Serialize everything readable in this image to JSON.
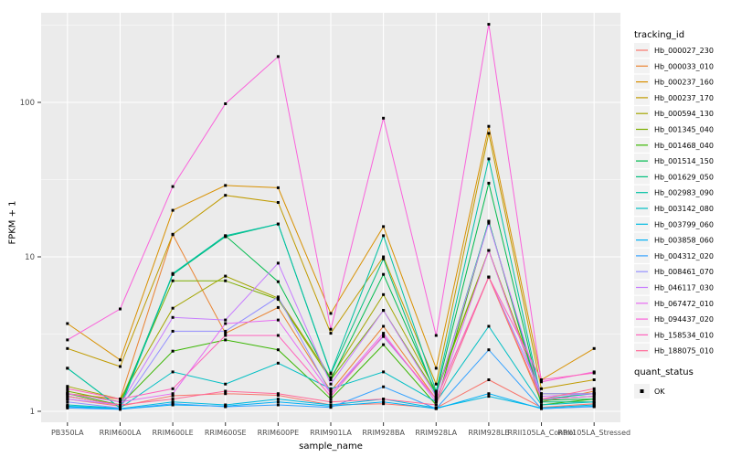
{
  "figure": {
    "background": "#ffffff",
    "panel_background": "#ebebeb",
    "grid_color": "#ffffff",
    "tick_label_color": "#4d4d4d",
    "axis_title_color": "#000000",
    "point_color": "#000000",
    "legend_key_background": "#f2f2f2"
  },
  "axes": {
    "x_title": "sample_name",
    "y_title": "FPKM + 1",
    "y_tick_labels": [
      "1",
      "10",
      "100"
    ]
  },
  "legend": {
    "title": "tracking_id",
    "quant_title": "quant_status",
    "quant_items": [
      {
        "label": "OK"
      }
    ]
  },
  "chart_data": {
    "type": "line",
    "title": "",
    "xlabel": "sample_name",
    "ylabel": "FPKM + 1",
    "y_scale": "log10",
    "y_ticks": [
      1,
      10,
      100
    ],
    "y_minor_ticks": [
      3.162,
      31.62,
      316.2
    ],
    "ylim": [
      0.85,
      380
    ],
    "grid": true,
    "legend_position": "right",
    "legend_title": "tracking_id",
    "point_marker": "filled-square",
    "categories": [
      "PB350LA",
      "RRIM600LA",
      "RRIM600LE",
      "RRIM600SE",
      "RRIM600PE",
      "RRIM901LA",
      "RRIM928BA",
      "RRIM928LA",
      "RRIM928LE",
      "RRII105LA_Control",
      "RRII105LA_Stressed"
    ],
    "series": [
      {
        "name": "Hb_000027_230",
        "color": "#F8766D",
        "values": [
          1.2,
          1.08,
          1.26,
          1.3,
          1.27,
          1.1,
          1.12,
          1.05,
          1.6,
          1.06,
          1.12
        ]
      },
      {
        "name": "Hb_000033_010",
        "color": "#EA8331",
        "values": [
          1.3,
          1.2,
          13.9,
          3.2,
          4.7,
          1.35,
          3.55,
          1.2,
          7.4,
          1.15,
          1.35
        ]
      },
      {
        "name": "Hb_000237_160",
        "color": "#D89000",
        "values": [
          3.7,
          2.15,
          20,
          29,
          28,
          4.3,
          15.7,
          1.9,
          70,
          1.6,
          2.55
        ]
      },
      {
        "name": "Hb_000237_170",
        "color": "#C09B00",
        "values": [
          2.55,
          1.95,
          14,
          25,
          22.5,
          3.2,
          10,
          1.5,
          63,
          1.4,
          1.6
        ]
      },
      {
        "name": "Hb_000594_130",
        "color": "#A3A500",
        "values": [
          1.45,
          1.2,
          4.65,
          7.5,
          5.4,
          1.65,
          5.7,
          1.35,
          11,
          1.3,
          1.3
        ]
      },
      {
        "name": "Hb_001345_040",
        "color": "#7CAE00",
        "values": [
          1.35,
          1.15,
          7.0,
          7.0,
          5.3,
          1.6,
          4.5,
          1.3,
          11,
          1.2,
          1.25
        ]
      },
      {
        "name": "Hb_001468_040",
        "color": "#39B600",
        "values": [
          1.3,
          1.1,
          2.45,
          2.9,
          2.5,
          1.2,
          2.7,
          1.1,
          17,
          1.1,
          1.2
        ]
      },
      {
        "name": "Hb_001514_150",
        "color": "#00BB4E",
        "values": [
          1.25,
          1.1,
          7.7,
          13.7,
          6.9,
          1.6,
          7.7,
          1.3,
          30,
          1.18,
          1.2
        ]
      },
      {
        "name": "Hb_001629_050",
        "color": "#00BF7D",
        "values": [
          1.9,
          1.05,
          7.7,
          13.5,
          16.3,
          1.75,
          9.7,
          1.25,
          17,
          1.15,
          1.15
        ]
      },
      {
        "name": "Hb_002983_090",
        "color": "#00C1A3",
        "values": [
          1.9,
          1.05,
          7.8,
          13.7,
          16.3,
          1.77,
          13.7,
          1.35,
          43,
          1.2,
          1.3
        ]
      },
      {
        "name": "Hb_003142_080",
        "color": "#00BFC4",
        "values": [
          1.1,
          1.05,
          1.8,
          1.5,
          2.05,
          1.4,
          1.8,
          1.15,
          3.55,
          1.1,
          1.15
        ]
      },
      {
        "name": "Hb_003799_060",
        "color": "#00BAE0",
        "values": [
          1.08,
          1.04,
          1.15,
          1.1,
          1.2,
          1.1,
          1.2,
          1.05,
          1.25,
          1.05,
          1.1
        ]
      },
      {
        "name": "Hb_003858_060",
        "color": "#00B0F6",
        "values": [
          1.07,
          1.03,
          1.1,
          1.08,
          1.15,
          1.08,
          1.15,
          1.04,
          1.3,
          1.04,
          1.08
        ]
      },
      {
        "name": "Hb_004312_020",
        "color": "#35A2FF",
        "values": [
          1.05,
          1.03,
          1.12,
          1.07,
          1.1,
          1.06,
          1.44,
          1.04,
          2.5,
          1.04,
          1.07
        ]
      },
      {
        "name": "Hb_008461_070",
        "color": "#9590FF",
        "values": [
          1.15,
          1.05,
          3.3,
          3.3,
          5.5,
          1.3,
          3.05,
          1.2,
          7.4,
          1.3,
          1.3
        ]
      },
      {
        "name": "Hb_046117_030",
        "color": "#C77CFF",
        "values": [
          1.2,
          1.1,
          4.05,
          3.9,
          9.1,
          1.5,
          4.5,
          1.25,
          16.5,
          1.25,
          1.3
        ]
      },
      {
        "name": "Hb_067472_010",
        "color": "#E76BF3",
        "values": [
          1.3,
          1.15,
          1.3,
          3.7,
          3.9,
          1.3,
          3.2,
          1.15,
          11,
          1.2,
          1.25
        ]
      },
      {
        "name": "Hb_094437_020",
        "color": "#FA62DB",
        "values": [
          2.9,
          4.6,
          28.5,
          98,
          198,
          3.4,
          79,
          3.1,
          320,
          1.55,
          1.8
        ]
      },
      {
        "name": "Hb_158534_010",
        "color": "#FF62BC",
        "values": [
          1.4,
          1.2,
          1.4,
          3.1,
          3.1,
          1.25,
          3.1,
          1.2,
          7.4,
          1.6,
          1.77
        ]
      },
      {
        "name": "Hb_188075_010",
        "color": "#FF6A98",
        "values": [
          1.25,
          1.1,
          1.2,
          1.35,
          1.3,
          1.15,
          1.2,
          1.1,
          7.4,
          1.2,
          1.4
        ]
      }
    ],
    "quant_status_legend": {
      "title": "quant_status",
      "items": [
        "OK"
      ]
    }
  }
}
